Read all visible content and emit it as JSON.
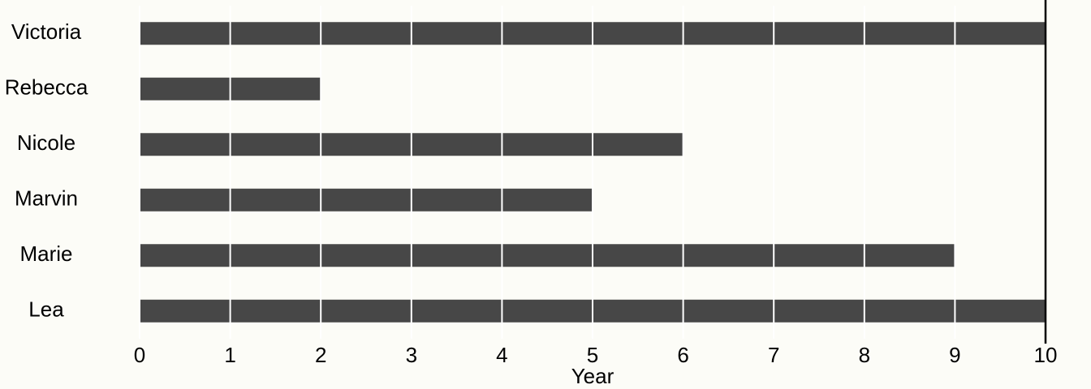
{
  "chart_data": {
    "type": "bar",
    "orientation": "horizontal",
    "x_label": "Year",
    "categories": [
      "Victoria",
      "Rebecca",
      "Nicole",
      "Marvin",
      "Marie",
      "Lea"
    ],
    "values": [
      10,
      2,
      6,
      5,
      9,
      10
    ],
    "color": "#474747",
    "xlim": [
      0,
      10
    ],
    "xticks": [
      0,
      1,
      2,
      3,
      4,
      5,
      6,
      7,
      8,
      9,
      10
    ],
    "grid": true,
    "grid_color": "#ffffff"
  }
}
